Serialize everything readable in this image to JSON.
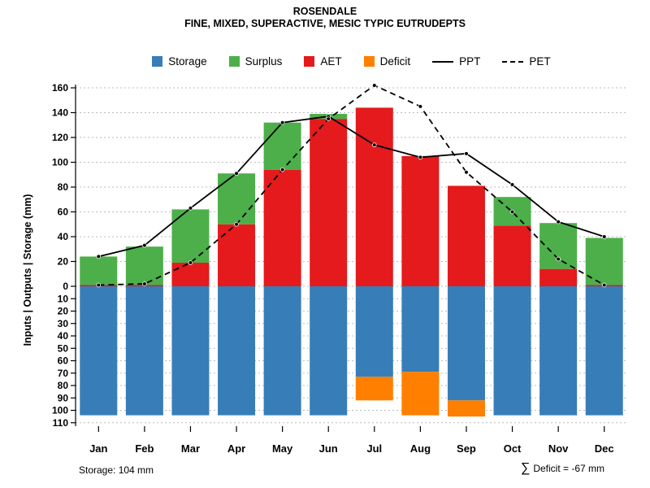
{
  "footer": {
    "storage_note": "Storage: 104 mm",
    "deficit_sigma": "∑",
    "deficit_note": "Deficit = -67 mm"
  },
  "chart_data": {
    "type": "bar",
    "title": "ROSENDALE",
    "subtitle": "FINE, MIXED, SUPERACTIVE, MESIC TYPIC EUTRUDEPTS",
    "ylabel": "Inputs | Outputs | Storage    (mm)",
    "ylim": [
      -110,
      160
    ],
    "grid": true,
    "legend_position": "top",
    "y_ticks_upper": [
      0,
      20,
      40,
      60,
      80,
      100,
      120,
      140,
      160
    ],
    "y_ticks_lower": [
      10,
      20,
      30,
      40,
      50,
      60,
      70,
      80,
      90,
      100,
      110
    ],
    "categories": [
      "Jan",
      "Feb",
      "Mar",
      "Apr",
      "May",
      "Jun",
      "Jul",
      "Aug",
      "Sep",
      "Oct",
      "Nov",
      "Dec"
    ],
    "series": [
      {
        "name": "Storage",
        "kind": "bar-down",
        "color": "#377EB8",
        "values": [
          104,
          104,
          104,
          104,
          104,
          104,
          73,
          69,
          92,
          104,
          104,
          104
        ]
      },
      {
        "name": "Deficit",
        "kind": "bar-down-stacked",
        "color": "#FF7F00",
        "values": [
          0,
          0,
          0,
          0,
          0,
          0,
          19,
          35,
          13,
          0,
          0,
          0
        ]
      },
      {
        "name": "AET",
        "kind": "bar-up",
        "color": "#E41A1C",
        "values": [
          1,
          1,
          19,
          50,
          94,
          135,
          144,
          105,
          81,
          49,
          14,
          1
        ]
      },
      {
        "name": "Surplus",
        "kind": "bar-up-stacked",
        "color": "#4DAF4A",
        "values": [
          23,
          31,
          43,
          41,
          38,
          4,
          0,
          0,
          0,
          23,
          37,
          38
        ]
      },
      {
        "name": "PPT",
        "kind": "line-solid",
        "color": "#000000",
        "values": [
          24,
          33,
          63,
          91,
          132,
          137,
          114,
          104,
          107,
          82,
          52,
          40
        ]
      },
      {
        "name": "PET",
        "kind": "line-dashed",
        "color": "#000000",
        "values": [
          1,
          2,
          19,
          50,
          94,
          135,
          162,
          145,
          92,
          60,
          22,
          1
        ]
      }
    ],
    "legend": [
      {
        "label": "Storage",
        "swatch": "square",
        "color": "#377EB8"
      },
      {
        "label": "Surplus",
        "swatch": "square",
        "color": "#4DAF4A"
      },
      {
        "label": "AET",
        "swatch": "square",
        "color": "#E41A1C"
      },
      {
        "label": "Deficit",
        "swatch": "square",
        "color": "#FF7F00"
      },
      {
        "label": "PPT",
        "swatch": "line-solid",
        "color": "#000000"
      },
      {
        "label": "PET",
        "swatch": "line-dashed",
        "color": "#000000"
      }
    ]
  }
}
